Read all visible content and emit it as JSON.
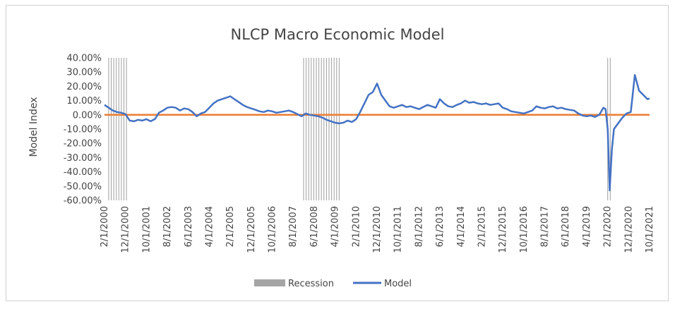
{
  "chart_data": {
    "type": "line",
    "title": "NLCP Macro Economic Model",
    "ylabel": "Model Index",
    "xlabel": "",
    "ylim": [
      -60,
      40
    ],
    "y_tick_step": 10,
    "y_tick_format": "percent_2dp",
    "x_range": [
      "2000-02-01",
      "2021-10-01"
    ],
    "x_tick_labels": [
      "2/1/2000",
      "12/1/2000",
      "10/1/2001",
      "8/1/2002",
      "6/1/2003",
      "4/1/2004",
      "2/1/2005",
      "12/1/2005",
      "10/1/2006",
      "8/1/2007",
      "6/1/2008",
      "4/1/2009",
      "2/1/2010",
      "12/1/2010",
      "10/1/2011",
      "8/1/2012",
      "6/1/2013",
      "4/1/2014",
      "2/1/2015",
      "12/1/2015",
      "10/1/2016",
      "8/1/2017",
      "6/1/2018",
      "4/1/2019",
      "2/1/2020",
      "12/1/2020",
      "10/1/2021"
    ],
    "recessions": [
      {
        "start": "2000-04-01",
        "end": "2001-01-01"
      },
      {
        "start": "2008-01-01",
        "end": "2009-06-01"
      },
      {
        "start": "2020-02-01",
        "end": "2020-03-15"
      }
    ],
    "zero_line_color": "#ED7D31",
    "series": [
      {
        "name": "Model",
        "color": "#4472C4",
        "points": [
          [
            "2000-02-01",
            7
          ],
          [
            "2000-04-01",
            5
          ],
          [
            "2000-06-01",
            3
          ],
          [
            "2000-08-01",
            2
          ],
          [
            "2000-10-01",
            1.5
          ],
          [
            "2000-12-01",
            0.5
          ],
          [
            "2001-02-01",
            -4
          ],
          [
            "2001-04-01",
            -4.5
          ],
          [
            "2001-06-01",
            -3.5
          ],
          [
            "2001-08-01",
            -4
          ],
          [
            "2001-10-01",
            -3
          ],
          [
            "2001-12-01",
            -4.5
          ],
          [
            "2002-02-01",
            -3
          ],
          [
            "2002-04-01",
            1.5
          ],
          [
            "2002-06-01",
            3
          ],
          [
            "2002-08-01",
            5
          ],
          [
            "2002-10-01",
            5.5
          ],
          [
            "2002-12-01",
            5
          ],
          [
            "2003-02-01",
            3
          ],
          [
            "2003-04-01",
            4.5
          ],
          [
            "2003-06-01",
            4
          ],
          [
            "2003-08-01",
            2
          ],
          [
            "2003-10-01",
            -1
          ],
          [
            "2003-12-01",
            1
          ],
          [
            "2004-02-01",
            2
          ],
          [
            "2004-04-01",
            5
          ],
          [
            "2004-06-01",
            8
          ],
          [
            "2004-08-01",
            10
          ],
          [
            "2004-10-01",
            11
          ],
          [
            "2004-12-01",
            12
          ],
          [
            "2005-02-01",
            13
          ],
          [
            "2005-04-01",
            11
          ],
          [
            "2005-06-01",
            9
          ],
          [
            "2005-08-01",
            7
          ],
          [
            "2005-10-01",
            5.5
          ],
          [
            "2005-12-01",
            4.5
          ],
          [
            "2006-02-01",
            3.5
          ],
          [
            "2006-04-01",
            2.5
          ],
          [
            "2006-06-01",
            2
          ],
          [
            "2006-08-01",
            3
          ],
          [
            "2006-10-01",
            2.5
          ],
          [
            "2006-12-01",
            1.5
          ],
          [
            "2007-02-01",
            2
          ],
          [
            "2007-04-01",
            2.5
          ],
          [
            "2007-06-01",
            3
          ],
          [
            "2007-08-01",
            2
          ],
          [
            "2007-10-01",
            0.5
          ],
          [
            "2007-12-01",
            -1
          ],
          [
            "2008-02-01",
            1
          ],
          [
            "2008-04-01",
            0
          ],
          [
            "2008-06-01",
            -0.5
          ],
          [
            "2008-08-01",
            -1
          ],
          [
            "2008-10-01",
            -2
          ],
          [
            "2008-12-01",
            -3.5
          ],
          [
            "2009-02-01",
            -4.5
          ],
          [
            "2009-04-01",
            -5.5
          ],
          [
            "2009-06-01",
            -6
          ],
          [
            "2009-08-01",
            -5.5
          ],
          [
            "2009-10-01",
            -4
          ],
          [
            "2009-12-01",
            -5
          ],
          [
            "2010-02-01",
            -3
          ],
          [
            "2010-04-01",
            2
          ],
          [
            "2010-06-01",
            8
          ],
          [
            "2010-08-01",
            14
          ],
          [
            "2010-10-01",
            16
          ],
          [
            "2010-12-01",
            22
          ],
          [
            "2011-02-01",
            14
          ],
          [
            "2011-04-01",
            10
          ],
          [
            "2011-06-01",
            6
          ],
          [
            "2011-08-01",
            5
          ],
          [
            "2011-10-01",
            6
          ],
          [
            "2011-12-01",
            7
          ],
          [
            "2012-02-01",
            5.5
          ],
          [
            "2012-04-01",
            6
          ],
          [
            "2012-06-01",
            5
          ],
          [
            "2012-08-01",
            4
          ],
          [
            "2012-10-01",
            5.5
          ],
          [
            "2012-12-01",
            7
          ],
          [
            "2013-02-01",
            6
          ],
          [
            "2013-04-01",
            5
          ],
          [
            "2013-06-01",
            11
          ],
          [
            "2013-08-01",
            8
          ],
          [
            "2013-10-01",
            6
          ],
          [
            "2013-12-01",
            5.5
          ],
          [
            "2014-02-01",
            7
          ],
          [
            "2014-04-01",
            8
          ],
          [
            "2014-06-01",
            10
          ],
          [
            "2014-08-01",
            8.5
          ],
          [
            "2014-10-01",
            9
          ],
          [
            "2014-12-01",
            8
          ],
          [
            "2015-02-01",
            7.5
          ],
          [
            "2015-04-01",
            8
          ],
          [
            "2015-06-01",
            7
          ],
          [
            "2015-08-01",
            7.5
          ],
          [
            "2015-10-01",
            8
          ],
          [
            "2015-12-01",
            5
          ],
          [
            "2016-02-01",
            4
          ],
          [
            "2016-04-01",
            2.5
          ],
          [
            "2016-06-01",
            2
          ],
          [
            "2016-08-01",
            1.5
          ],
          [
            "2016-10-01",
            1
          ],
          [
            "2016-12-01",
            2
          ],
          [
            "2017-02-01",
            3
          ],
          [
            "2017-04-01",
            6
          ],
          [
            "2017-06-01",
            5
          ],
          [
            "2017-08-01",
            4.5
          ],
          [
            "2017-10-01",
            5.5
          ],
          [
            "2017-12-01",
            6
          ],
          [
            "2018-02-01",
            4.5
          ],
          [
            "2018-04-01",
            5
          ],
          [
            "2018-06-01",
            4
          ],
          [
            "2018-08-01",
            3.5
          ],
          [
            "2018-10-01",
            3
          ],
          [
            "2018-12-01",
            1
          ],
          [
            "2019-02-01",
            -0.5
          ],
          [
            "2019-04-01",
            -1
          ],
          [
            "2019-06-01",
            -0.5
          ],
          [
            "2019-08-01",
            -1.5
          ],
          [
            "2019-10-01",
            0
          ],
          [
            "2019-12-01",
            5
          ],
          [
            "2020-01-01",
            4
          ],
          [
            "2020-02-01",
            -10
          ],
          [
            "2020-03-01",
            -53
          ],
          [
            "2020-04-01",
            -25
          ],
          [
            "2020-05-01",
            -10
          ],
          [
            "2020-07-01",
            -6
          ],
          [
            "2020-09-01",
            -2
          ],
          [
            "2020-11-01",
            1
          ],
          [
            "2021-01-01",
            2
          ],
          [
            "2021-03-01",
            28
          ],
          [
            "2021-05-01",
            17
          ],
          [
            "2021-07-01",
            14
          ],
          [
            "2021-09-01",
            11
          ],
          [
            "2021-10-01",
            11.5
          ]
        ]
      }
    ],
    "legend": {
      "placement": "bottom",
      "entries": [
        {
          "label": "Recession",
          "color": "#A5A5A5"
        },
        {
          "label": "Model",
          "color": "#4472C4"
        }
      ]
    }
  }
}
